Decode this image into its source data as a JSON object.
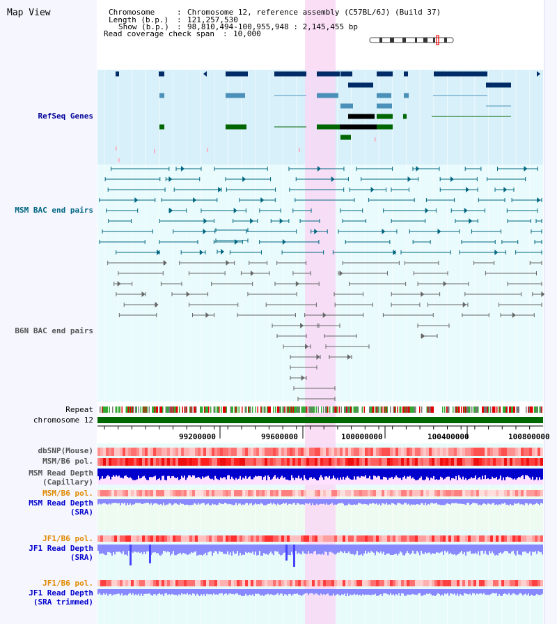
{
  "page": {
    "title": "Map View"
  },
  "info": {
    "chromosome_key": "Chromosome",
    "chromosome_val": "Chromosome 12, reference assembly (C57BL/6J) (Build 37)",
    "length_key": "Length (b.p.)",
    "length_val": "121,257,530",
    "show_key": "Show (b.p.)",
    "show_val": "98,810,494-100,955,948 : 2,145,455 bp",
    "coverage_key": "Read coverage check span",
    "coverage_val": "10,000"
  },
  "tracks": {
    "refseq": {
      "label": "RefSeq Genes",
      "color": "#000099"
    },
    "msm_bac": {
      "label": "MSM BAC end pairs",
      "color": "#006680"
    },
    "b6n_bac": {
      "label": "B6N BAC end pairs",
      "color": "#555555"
    },
    "repeat": {
      "label": "Repeat"
    },
    "chromosome": {
      "label": "chromosome 12"
    },
    "dbsnp": {
      "label": "dbSNP(Mouse)"
    },
    "msm_b6_pol_1": {
      "label": "MSM/B6 pol."
    },
    "msm_depth_cap": {
      "label_1": "MSM Read Depth",
      "label_2": "(Capillary)"
    },
    "msm_b6_pol_2": {
      "label": "MSM/B6 pol.",
      "color": "#e08a00"
    },
    "msm_depth_sra": {
      "label_1": "MSM Read Depth",
      "label_2": "(SRA)",
      "color": "#0000cc"
    },
    "jf1_b6_pol_1": {
      "label": "JF1/B6 pol.",
      "color": "#e08a00"
    },
    "jf1_depth_sra": {
      "label_1": "JF1 Read Depth",
      "label_2": "(SRA)",
      "color": "#0000cc"
    },
    "jf1_b6_pol_2": {
      "label": "JF1/B6 pol.",
      "color": "#e08a00"
    },
    "jf1_depth_trim": {
      "label_1": "JF1 Read Depth",
      "label_2": "(SRA trimmed)",
      "color": "#0000cc"
    }
  },
  "axis": {
    "ticks": [
      "99200000",
      "99600000",
      "100000000",
      "100400000",
      "100800000"
    ]
  },
  "colors": {
    "highlight": "#f8d8f4",
    "gene_dark": "#002b66",
    "gene_mid": "#4a90b8",
    "gene_green": "#006600",
    "bac_msm": "#006680",
    "bac_b6n": "#666666",
    "depth_blue": "#0000cc",
    "depth_light": "#8888ff"
  }
}
